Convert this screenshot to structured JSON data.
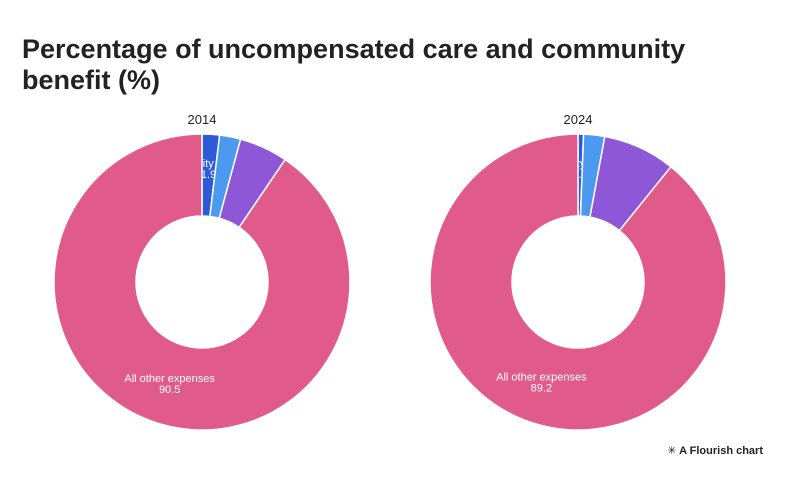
{
  "title": "Percentage of uncompensated care and community benefit (%)",
  "footer": "A Flourish chart",
  "chart_data": [
    {
      "type": "donut",
      "title": "2014",
      "categories": [
        "Charity care",
        null,
        null,
        "All other expenses"
      ],
      "values": [
        1.9,
        2.3,
        5.3,
        90.5
      ],
      "colors": [
        "#2d5bd8",
        "#4b9af0",
        "#8e57d8",
        "#e15b8a"
      ]
    },
    {
      "type": "donut",
      "title": "2024",
      "categories": [
        "Charity care",
        null,
        null,
        "All other expenses"
      ],
      "values": [
        0.6,
        2.3,
        7.9,
        89.2
      ],
      "colors": [
        "#2d5bd8",
        "#4b9af0",
        "#8e57d8",
        "#e15b8a"
      ]
    }
  ]
}
